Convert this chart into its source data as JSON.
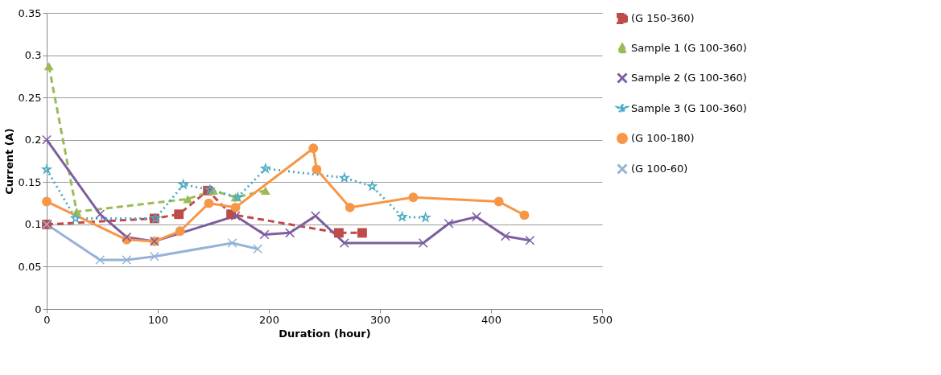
{
  "chart_data": {
    "type": "line",
    "xlabel": "Duration (hour)",
    "ylabel": "Current (A)",
    "xlim": [
      0,
      500
    ],
    "xticks": [
      0,
      100,
      200,
      300,
      400,
      500
    ],
    "ylim": [
      0,
      0.35
    ],
    "yticks": [
      0,
      0.05,
      0.1,
      0.15,
      0.2,
      0.25,
      0.3,
      0.35
    ],
    "grid": "y",
    "legend": "right",
    "series": [
      {
        "name": "(G 150-360)",
        "color": "#be4b48",
        "marker": "square",
        "line_style": "dashed",
        "x": [
          0,
          97,
          119,
          145,
          166,
          263,
          284
        ],
        "values": [
          0.1,
          0.107,
          0.112,
          0.14,
          0.112,
          0.09,
          0.09
        ]
      },
      {
        "name": "Sample 1 (G 100-360)",
        "color": "#9bbb59",
        "marker": "triangle",
        "line_style": "dashed",
        "x": [
          2,
          27,
          127,
          150,
          170,
          197
        ],
        "values": [
          0.287,
          0.115,
          0.13,
          0.14,
          0.132,
          0.14
        ]
      },
      {
        "name": "Sample 2 (G 100-360)",
        "color": "#7d5fa0",
        "marker": "cross",
        "line_style": "solid",
        "x": [
          0,
          48,
          72,
          97,
          170,
          196,
          219,
          242,
          268,
          339,
          362,
          387,
          413,
          435
        ],
        "values": [
          0.2,
          0.112,
          0.085,
          0.08,
          0.11,
          0.088,
          0.09,
          0.11,
          0.078,
          0.078,
          0.101,
          0.109,
          0.086,
          0.081
        ]
      },
      {
        "name": "Sample 3 (G 100-360)",
        "color": "#4bacc6",
        "marker": "star",
        "line_style": "dotted",
        "x": [
          0,
          26,
          98,
          123,
          147,
          172,
          197,
          268,
          293,
          320,
          341
        ],
        "values": [
          0.165,
          0.107,
          0.107,
          0.147,
          0.141,
          0.132,
          0.166,
          0.155,
          0.145,
          0.109,
          0.108
        ]
      },
      {
        "name": "(G 100-180)",
        "color": "#f79646",
        "marker": "circle",
        "line_style": "solid",
        "x": [
          0,
          72,
          97,
          120,
          146,
          170,
          240,
          243,
          273,
          330,
          407,
          430
        ],
        "values": [
          0.127,
          0.082,
          0.08,
          0.092,
          0.125,
          0.12,
          0.19,
          0.165,
          0.12,
          0.132,
          0.127,
          0.111
        ]
      },
      {
        "name": "(G 100-60)",
        "color": "#95b3d7",
        "marker": "cross",
        "line_style": "solid",
        "x": [
          0,
          48,
          72,
          97,
          167,
          190
        ],
        "values": [
          0.1,
          0.058,
          0.058,
          0.062,
          0.078,
          0.071
        ]
      }
    ]
  }
}
